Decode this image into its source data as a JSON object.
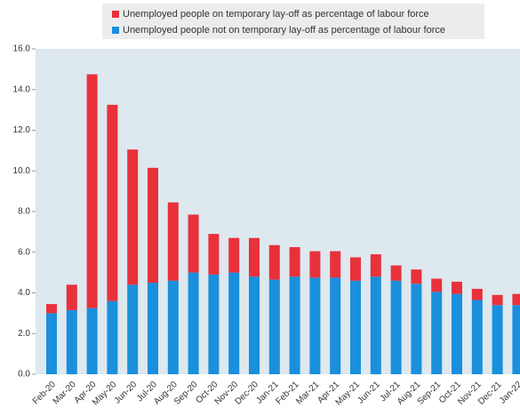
{
  "chart_data": {
    "type": "stacked_bar",
    "categories": [
      "Feb-20",
      "Mar-20",
      "Apr-20",
      "May-20",
      "Jun-20",
      "Jul-20",
      "Aug-20",
      "Sep-20",
      "Oct-20",
      "Nov-20",
      "Dec-20",
      "Jan-21",
      "Feb-21",
      "Mar-21",
      "Apr-21",
      "May-21",
      "Jun-21",
      "Jul-21",
      "Aug-21",
      "Sep-21",
      "Oct-21",
      "Nov-21",
      "Dec-21",
      "Jan-22"
    ],
    "series": [
      {
        "name": "Unemployed people on temporary lay-off as percentage of labour force",
        "color": "#e8313b",
        "values": [
          0.45,
          1.25,
          11.5,
          9.65,
          6.65,
          5.65,
          3.85,
          2.85,
          2.0,
          1.7,
          1.9,
          1.7,
          1.45,
          1.3,
          1.3,
          1.15,
          1.1,
          0.75,
          0.7,
          0.65,
          0.6,
          0.55,
          0.5,
          0.55
        ]
      },
      {
        "name": "Unemployed people not on temporary lay-off as percentage of labour force",
        "color": "#1a8fdc",
        "values": [
          3.0,
          3.15,
          3.25,
          3.6,
          4.4,
          4.5,
          4.6,
          5.0,
          4.9,
          5.0,
          4.8,
          4.65,
          4.8,
          4.75,
          4.75,
          4.6,
          4.8,
          4.6,
          4.45,
          4.05,
          3.95,
          3.65,
          3.4,
          3.4
        ]
      }
    ],
    "ylim": [
      0,
      16
    ],
    "yticks": [
      {
        "value": 0,
        "label": "0.0"
      },
      {
        "value": 2,
        "label": "2.0"
      },
      {
        "value": 4,
        "label": "4.0"
      },
      {
        "value": 6,
        "label": "6.0"
      },
      {
        "value": 8,
        "label": "8.0"
      },
      {
        "value": 10,
        "label": "10.0"
      },
      {
        "value": 12,
        "label": "12.0"
      },
      {
        "value": 14,
        "label": "14.0"
      },
      {
        "value": 16,
        "label": "16.0"
      }
    ],
    "grid": false
  }
}
